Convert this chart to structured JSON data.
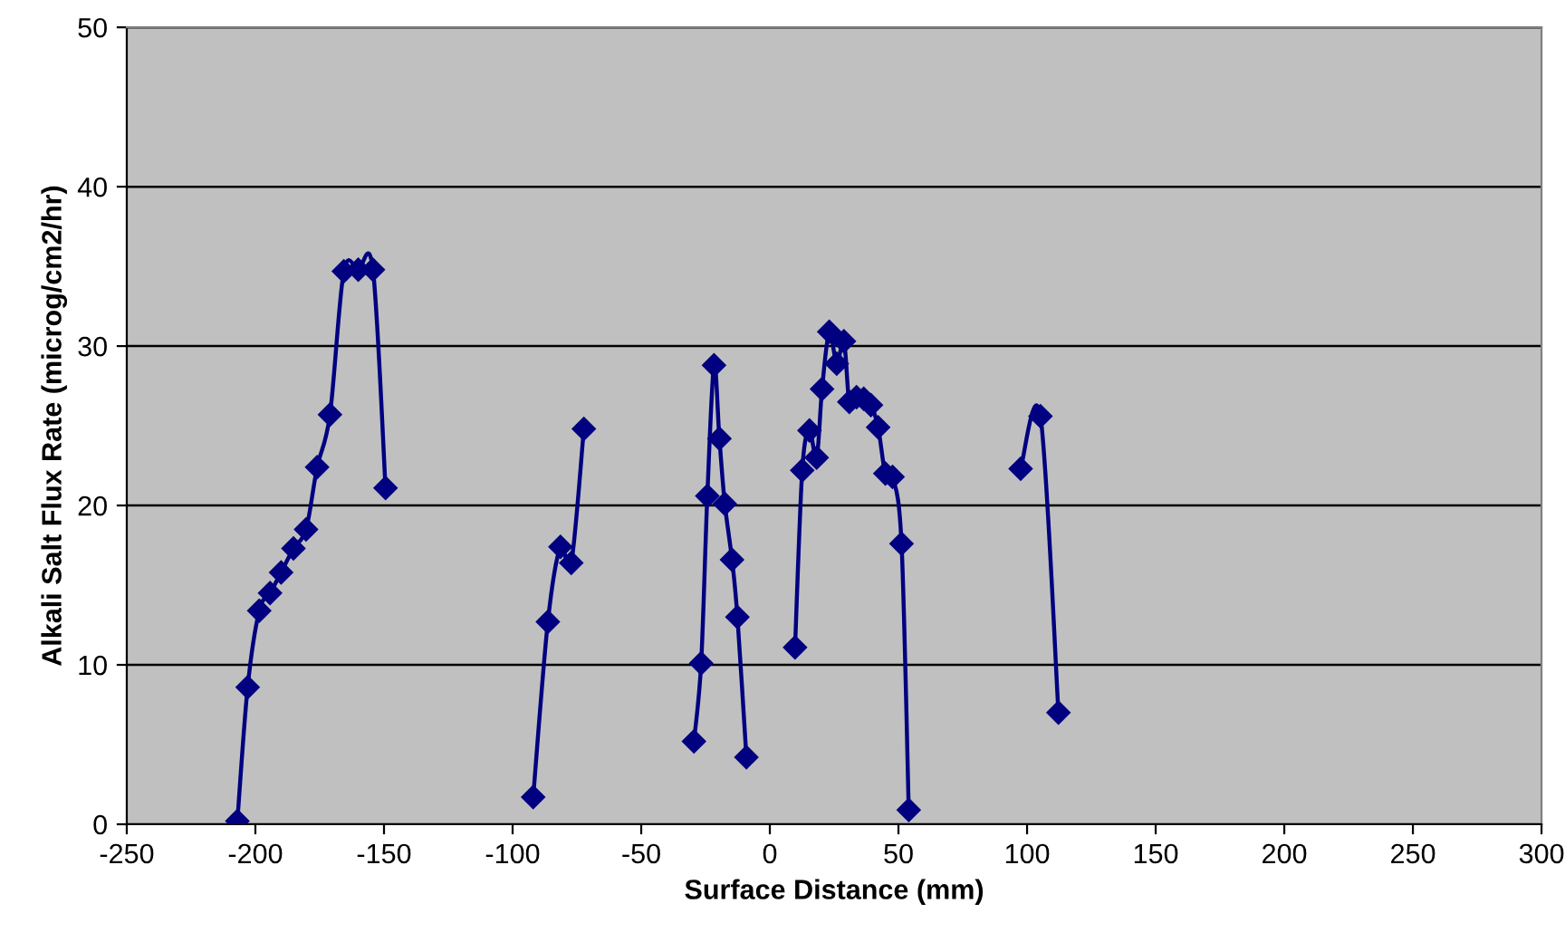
{
  "chart_data": {
    "type": "line",
    "xlabel": "Surface Distance (mm)",
    "ylabel": "Alkali Salt Flux Rate (microg/cm2/hr)",
    "xlim": [
      -250,
      300
    ],
    "xticks": [
      -250,
      -200,
      -150,
      -100,
      -50,
      0,
      50,
      100,
      150,
      200,
      250,
      300
    ],
    "ylim": [
      0,
      50
    ],
    "yticks": [
      0,
      10,
      20,
      30,
      40,
      50
    ],
    "grid": "y",
    "marker": "diamond",
    "line_style": "solid",
    "legend": false,
    "series": [
      {
        "color": "#000080",
        "x": [
          -207,
          -203,
          -198.5,
          -194.3,
          -190,
          -185.2,
          -180.3,
          -176,
          -171,
          -165.6,
          -160,
          -154.3,
          -149.4,
          null,
          -92,
          -86.3,
          -81.4,
          -77.2,
          -72.3,
          null,
          -29.5,
          -26.7,
          -24.3,
          -21.7,
          -19.6,
          -17.5,
          -14.7,
          -12.6,
          -9.1,
          null,
          9.8,
          12.6,
          15.4,
          18.2,
          20.3,
          23.1,
          26,
          28.8,
          30.9,
          33.7,
          36.5,
          39.3,
          42.1,
          44.9,
          47.7,
          51.2,
          54,
          null,
          97.5,
          105.2,
          112.2
        ],
        "values": [
          0.2,
          8.6,
          13.4,
          14.5,
          15.8,
          17.3,
          18.5,
          22.4,
          25.7,
          34.7,
          34.8,
          34.8,
          21.1,
          null,
          1.7,
          12.7,
          17.4,
          16.4,
          24.8,
          null,
          5.2,
          10.1,
          20.6,
          28.8,
          24.2,
          20.1,
          16.6,
          13,
          4.2,
          null,
          11.1,
          22.2,
          24.7,
          23,
          27.3,
          30.9,
          28.9,
          30.3,
          26.5,
          26.8,
          26.7,
          26.3,
          24.9,
          22,
          21.8,
          17.6,
          0.9,
          null,
          22.3,
          25.6,
          7
        ]
      }
    ]
  }
}
